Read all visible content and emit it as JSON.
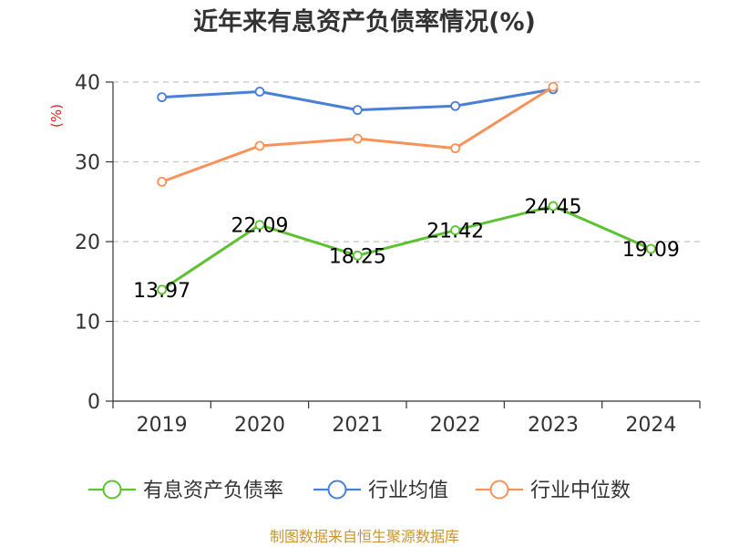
{
  "chart_data": {
    "type": "line",
    "title": "近年来有息资产负债率情况(%)",
    "ylabel": "(%)",
    "xlabel": "",
    "categories": [
      "2019",
      "2020",
      "2021",
      "2022",
      "2023",
      "2024"
    ],
    "ylim": [
      0,
      40
    ],
    "yticks": [
      0,
      10,
      20,
      30,
      40
    ],
    "grid": true,
    "legend_position": "bottom",
    "series": [
      {
        "name": "有息资产负债率",
        "color": "#5cc232",
        "values": [
          13.97,
          22.09,
          18.25,
          21.42,
          24.45,
          19.09
        ],
        "labels": [
          "13.97",
          "22.09",
          "18.25",
          "21.42",
          "24.45",
          "19.09"
        ],
        "show_labels": true
      },
      {
        "name": "行业均值",
        "color": "#4a7fd8",
        "values": [
          38.1,
          38.8,
          36.5,
          37.0,
          39.1,
          null
        ],
        "show_labels": false
      },
      {
        "name": "行业中位数",
        "color": "#f7935a",
        "values": [
          27.5,
          32.0,
          32.9,
          31.7,
          39.4,
          null
        ],
        "show_labels": false
      }
    ],
    "source": "制图数据来自恒生聚源数据库"
  }
}
